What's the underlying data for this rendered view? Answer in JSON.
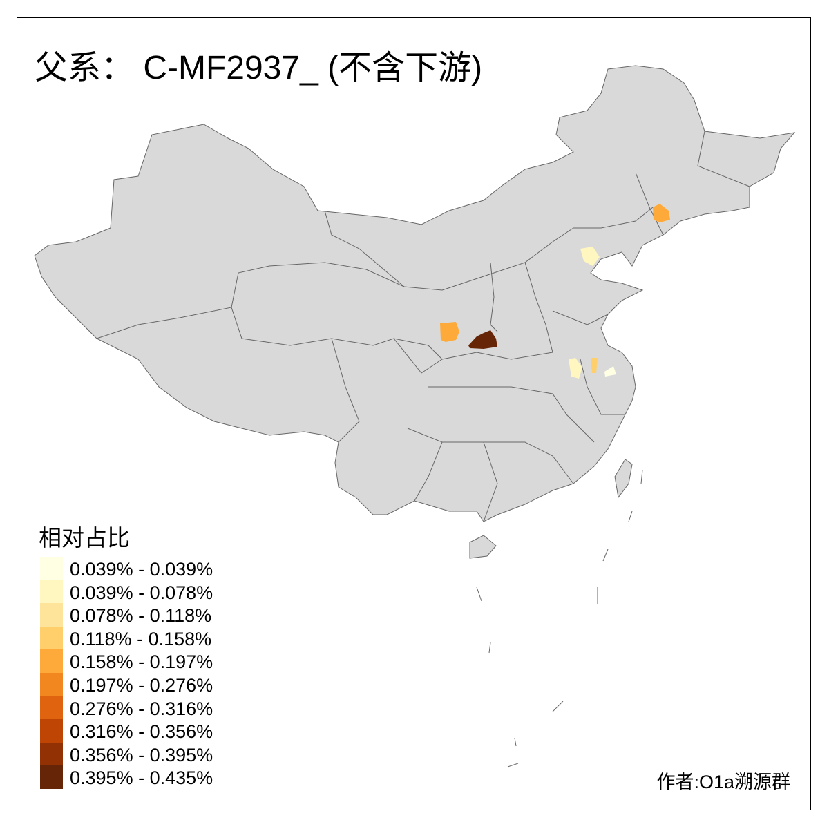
{
  "title": "父系： C-MF2937_ (不含下游)",
  "legend": {
    "title": "相对占比",
    "items": [
      {
        "label": "0.039% - 0.039%",
        "color": "#FFFFE3"
      },
      {
        "label": "0.039% - 0.078%",
        "color": "#FFF6C0"
      },
      {
        "label": "0.078% - 0.118%",
        "color": "#FEE49A"
      },
      {
        "label": "0.118% - 0.158%",
        "color": "#FECF6A"
      },
      {
        "label": "0.158% - 0.197%",
        "color": "#FDAA3A"
      },
      {
        "label": "0.197% - 0.276%",
        "color": "#F3871F"
      },
      {
        "label": "0.276% - 0.316%",
        "color": "#E0640F"
      },
      {
        "label": "0.316% - 0.356%",
        "color": "#BE4504"
      },
      {
        "label": "0.356% - 0.395%",
        "color": "#913104"
      },
      {
        "label": "0.395% - 0.435%",
        "color": "#662506"
      }
    ]
  },
  "map": {
    "base_color": "#D9D9D9",
    "border_color": "#666666",
    "highlighted_regions": [
      {
        "region": "shaanxi-central",
        "class_index": 9
      },
      {
        "region": "gansu-east",
        "class_index": 4
      },
      {
        "region": "liaoning-central",
        "class_index": 4
      },
      {
        "region": "tianjin",
        "class_index": 1
      },
      {
        "region": "anhui-central",
        "class_index": 1
      },
      {
        "region": "anhui-east",
        "class_index": 3
      },
      {
        "region": "jiangsu-south",
        "class_index": 0
      }
    ]
  },
  "credit": "作者:O1a溯源群"
}
